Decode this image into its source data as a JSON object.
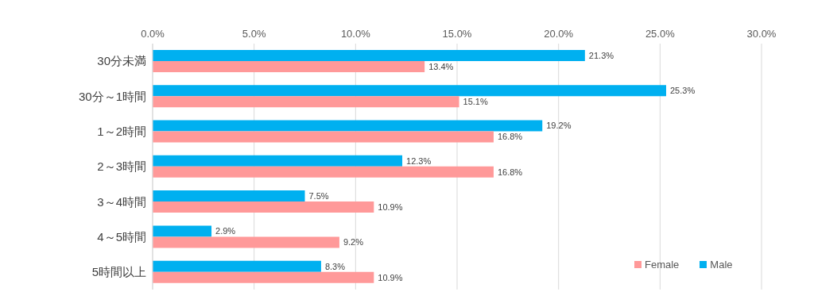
{
  "chart_data": {
    "type": "bar",
    "orientation": "horizontal",
    "categories": [
      "30分未満",
      "30分～1時間",
      "1～2時間",
      "2～3時間",
      "3～4時間",
      "4～5時間",
      "5時間以上"
    ],
    "series": [
      {
        "name": "Male",
        "color": "#00b0f0",
        "values": [
          21.3,
          25.3,
          19.2,
          12.3,
          7.5,
          2.9,
          8.3
        ],
        "value_labels": [
          "21.3%",
          "25.3%",
          "19.2%",
          "12.3%",
          "7.5%",
          "2.9%",
          "8.3%"
        ]
      },
      {
        "name": "Female",
        "color": "#ff9999",
        "values": [
          13.4,
          15.1,
          16.8,
          16.8,
          10.9,
          9.2,
          10.9
        ],
        "value_labels": [
          "13.4%",
          "15.1%",
          "16.8%",
          "16.8%",
          "10.9%",
          "9.2%",
          "10.9%"
        ]
      }
    ],
    "xlim": [
      0,
      30
    ],
    "xticks": [
      {
        "value": 0,
        "label": "0.0%"
      },
      {
        "value": 5,
        "label": "5.0%"
      },
      {
        "value": 10,
        "label": "10.0%"
      },
      {
        "value": 15,
        "label": "15.0%"
      },
      {
        "value": 20,
        "label": "20.0%"
      },
      {
        "value": 25,
        "label": "25.0%"
      },
      {
        "value": 30,
        "label": "30.0%"
      }
    ],
    "grid": "x",
    "legend": "bottom right"
  }
}
